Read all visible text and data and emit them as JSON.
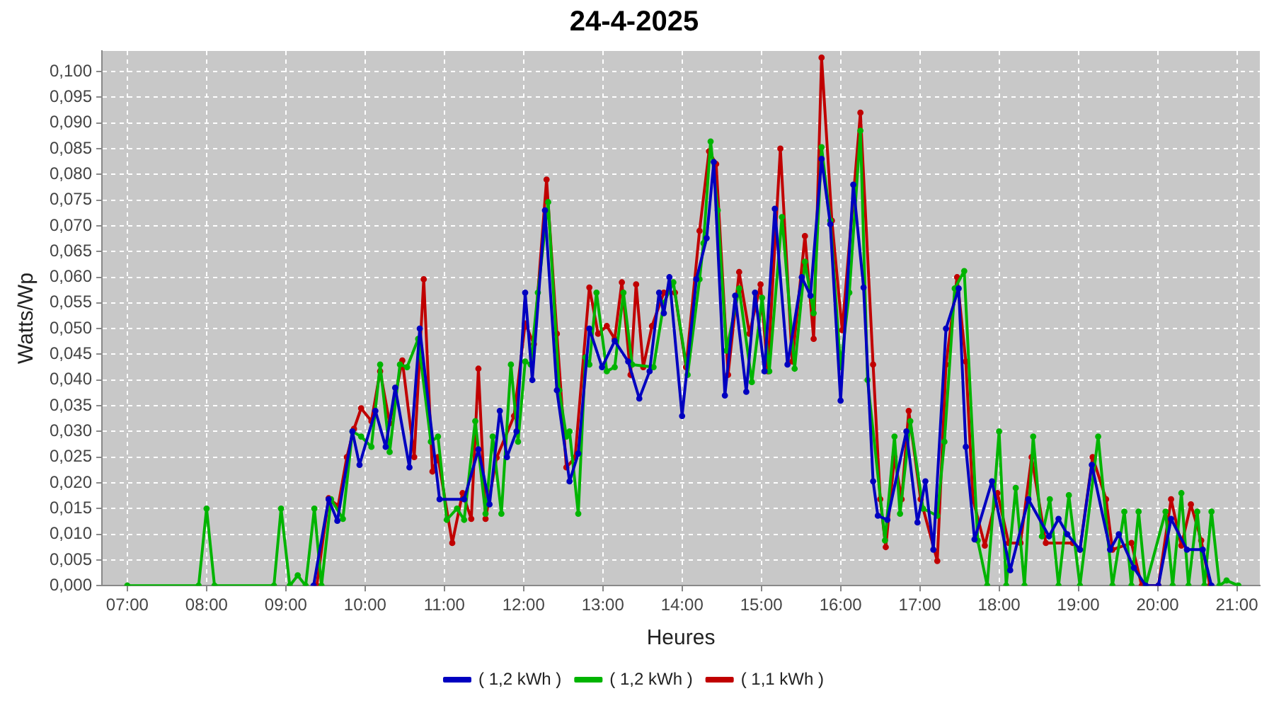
{
  "chart_data": {
    "type": "line",
    "title": "24-4-2025",
    "xlabel": "Heures",
    "ylabel": "Watts/Wp",
    "xlim": [
      6.68,
      21.29
    ],
    "xticks": [
      {
        "value": 7,
        "label": "07:00"
      },
      {
        "value": 8,
        "label": "08:00"
      },
      {
        "value": 9,
        "label": "09:00"
      },
      {
        "value": 10,
        "label": "10:00"
      },
      {
        "value": 11,
        "label": "11:00"
      },
      {
        "value": 12,
        "label": "12:00"
      },
      {
        "value": 13,
        "label": "13:00"
      },
      {
        "value": 14,
        "label": "14:00"
      },
      {
        "value": 15,
        "label": "15:00"
      },
      {
        "value": 16,
        "label": "16:00"
      },
      {
        "value": 17,
        "label": "17:00"
      },
      {
        "value": 18,
        "label": "18:00"
      },
      {
        "value": 19,
        "label": "19:00"
      },
      {
        "value": 20,
        "label": "20:00"
      },
      {
        "value": 21,
        "label": "21:00"
      }
    ],
    "ylim": [
      0,
      0.104
    ],
    "yticks": [
      {
        "value": 0,
        "label": "0,000"
      },
      {
        "value": 0.005,
        "label": "0,005"
      },
      {
        "value": 0.01,
        "label": "0,010"
      },
      {
        "value": 0.015,
        "label": "0,015"
      },
      {
        "value": 0.02,
        "label": "0,020"
      },
      {
        "value": 0.025,
        "label": "0,025"
      },
      {
        "value": 0.03,
        "label": "0,030"
      },
      {
        "value": 0.035,
        "label": "0,035"
      },
      {
        "value": 0.04,
        "label": "0,040"
      },
      {
        "value": 0.045,
        "label": "0,045"
      },
      {
        "value": 0.05,
        "label": "0,050"
      },
      {
        "value": 0.055,
        "label": "0,055"
      },
      {
        "value": 0.06,
        "label": "0,060"
      },
      {
        "value": 0.065,
        "label": "0,065"
      },
      {
        "value": 0.07,
        "label": "0,070"
      },
      {
        "value": 0.075,
        "label": "0,075"
      },
      {
        "value": 0.08,
        "label": "0,080"
      },
      {
        "value": 0.085,
        "label": "0,085"
      },
      {
        "value": 0.09,
        "label": "0,090"
      },
      {
        "value": 0.095,
        "label": "0,095"
      },
      {
        "value": 0.1,
        "label": "0,100"
      }
    ],
    "grid": true,
    "legend": "bottom",
    "marker": "circle",
    "line_style": "solid",
    "series": [
      {
        "name": "( 1,2 kWh )",
        "color": "#0000c0",
        "x": [
          9.35,
          9.54,
          9.65,
          9.84,
          9.93,
          10.13,
          10.26,
          10.38,
          10.56,
          10.69,
          10.94,
          11.25,
          11.43,
          11.57,
          11.7,
          11.79,
          11.91,
          12.02,
          12.11,
          12.27,
          12.42,
          12.58,
          12.69,
          12.83,
          12.99,
          13.15,
          13.32,
          13.46,
          13.59,
          13.71,
          13.77,
          13.84,
          14.0,
          14.18,
          14.31,
          14.4,
          14.54,
          14.67,
          14.81,
          14.92,
          15.04,
          15.17,
          15.33,
          15.51,
          15.62,
          15.76,
          15.87,
          16.0,
          16.16,
          16.29,
          16.41,
          16.47,
          16.59,
          16.83,
          16.97,
          17.07,
          17.17,
          17.33,
          17.49,
          17.58,
          17.69,
          17.91,
          18.14,
          18.37,
          18.63,
          18.75,
          18.86,
          19.02,
          19.17,
          19.4,
          19.51,
          19.7,
          19.85,
          20.01,
          20.17,
          20.37,
          20.57,
          20.68
        ],
        "values": [
          0,
          0.0168,
          0.0126,
          0.03,
          0.0235,
          0.034,
          0.027,
          0.0385,
          0.023,
          0.05,
          0.0168,
          0.0168,
          0.0265,
          0.0158,
          0.034,
          0.025,
          0.03,
          0.057,
          0.04,
          0.073,
          0.038,
          0.0203,
          0.0257,
          0.05,
          0.0425,
          0.0476,
          0.0436,
          0.0364,
          0.0417,
          0.057,
          0.053,
          0.06,
          0.033,
          0.0596,
          0.0676,
          0.0824,
          0.037,
          0.0564,
          0.0377,
          0.057,
          0.0417,
          0.0733,
          0.043,
          0.06,
          0.0564,
          0.083,
          0.0703,
          0.036,
          0.078,
          0.058,
          0.0203,
          0.0136,
          0.0128,
          0.03,
          0.0123,
          0.0203,
          0.007,
          0.05,
          0.0578,
          0.027,
          0.009,
          0.0203,
          0.003,
          0.0168,
          0.0096,
          0.013,
          0.01,
          0.007,
          0.0235,
          0.007,
          0.01,
          0.0035,
          0,
          0,
          0.013,
          0.007,
          0.007,
          0
        ]
      },
      {
        "name": "( 1,2 kWh )",
        "color": "#00b400",
        "x": [
          7.0,
          7.9,
          8.0,
          8.1,
          8.85,
          8.94,
          9.05,
          9.15,
          9.25,
          9.36,
          9.45,
          9.57,
          9.72,
          9.84,
          9.95,
          10.08,
          10.19,
          10.31,
          10.44,
          10.53,
          10.67,
          10.83,
          10.92,
          11.03,
          11.16,
          11.25,
          11.39,
          11.52,
          11.61,
          11.72,
          11.84,
          11.93,
          12.02,
          12.09,
          12.18,
          12.31,
          12.45,
          12.54,
          12.58,
          12.69,
          12.78,
          12.83,
          12.92,
          13.05,
          13.15,
          13.26,
          13.37,
          13.64,
          13.77,
          13.89,
          14.07,
          14.22,
          14.27,
          14.36,
          14.45,
          14.56,
          14.72,
          14.88,
          15.01,
          15.1,
          15.26,
          15.42,
          15.55,
          15.66,
          15.76,
          15.87,
          16.0,
          16.11,
          16.25,
          16.34,
          16.56,
          16.68,
          16.75,
          16.88,
          17.04,
          17.22,
          17.31,
          17.44,
          17.56,
          17.73,
          17.85,
          18.0,
          18.09,
          18.21,
          18.32,
          18.43,
          18.54,
          18.64,
          18.75,
          18.88,
          19.02,
          19.25,
          19.43,
          19.58,
          19.67,
          19.76,
          19.85,
          20.1,
          20.19,
          20.3,
          20.39,
          20.5,
          20.59,
          20.68,
          20.78,
          20.87,
          21.02
        ],
        "values": [
          0,
          0,
          0.015,
          0,
          0,
          0.015,
          0,
          0.002,
          0,
          0.015,
          0,
          0.0168,
          0.013,
          0.03,
          0.029,
          0.027,
          0.043,
          0.026,
          0.043,
          0.0425,
          0.048,
          0.028,
          0.029,
          0.0128,
          0.015,
          0.0128,
          0.032,
          0.014,
          0.029,
          0.014,
          0.043,
          0.028,
          0.0436,
          0.043,
          0.057,
          0.0746,
          0.038,
          0.029,
          0.03,
          0.014,
          0.0444,
          0.043,
          0.057,
          0.0417,
          0.0425,
          0.057,
          0.043,
          0.0425,
          0.055,
          0.059,
          0.041,
          0.0596,
          0.0666,
          0.0864,
          0.073,
          0.0457,
          0.0578,
          0.0396,
          0.056,
          0.0417,
          0.0717,
          0.0422,
          0.063,
          0.053,
          0.0853,
          0.071,
          0.0425,
          0.057,
          0.0885,
          0.04,
          0.0088,
          0.029,
          0.014,
          0.032,
          0.015,
          0.0136,
          0.028,
          0.0578,
          0.0612,
          0.0088,
          0,
          0.03,
          0,
          0.019,
          0,
          0.029,
          0.0096,
          0.0168,
          0,
          0.0176,
          0,
          0.029,
          0,
          0.0144,
          0,
          0.0144,
          0,
          0.0144,
          0,
          0.018,
          0,
          0.0144,
          0,
          0.0144,
          0,
          0.001,
          0
        ]
      },
      {
        "name": "( 1,1 kWh )",
        "color": "#c00000",
        "x": [
          9.39,
          9.54,
          9.66,
          9.77,
          9.86,
          9.95,
          10.08,
          10.19,
          10.31,
          10.47,
          10.62,
          10.74,
          10.85,
          10.92,
          11.1,
          11.23,
          11.34,
          11.43,
          11.52,
          11.66,
          11.88,
          12.02,
          12.13,
          12.29,
          12.42,
          12.54,
          12.65,
          12.83,
          12.94,
          13.05,
          13.15,
          13.24,
          13.35,
          13.42,
          13.51,
          13.62,
          13.77,
          13.91,
          14.05,
          14.22,
          14.34,
          14.43,
          14.58,
          14.72,
          14.85,
          14.99,
          15.08,
          15.24,
          15.39,
          15.55,
          15.66,
          15.76,
          15.89,
          16.02,
          16.25,
          16.41,
          16.5,
          16.57,
          16.68,
          16.77,
          16.86,
          17.01,
          17.22,
          17.33,
          17.47,
          17.58,
          17.67,
          17.82,
          17.98,
          18.12,
          18.27,
          18.41,
          18.59,
          18.93,
          19.02,
          19.18,
          19.35,
          19.43,
          19.67,
          19.8,
          20.01,
          20.17,
          20.3,
          20.42,
          20.55,
          20.66
        ],
        "values": [
          0,
          0.017,
          0.0155,
          0.025,
          0.0305,
          0.0345,
          0.032,
          0.0417,
          0.0316,
          0.0438,
          0.025,
          0.0596,
          0.0222,
          0.025,
          0.0083,
          0.018,
          0.013,
          0.0422,
          0.013,
          0.0249,
          0.033,
          0.051,
          0.047,
          0.079,
          0.049,
          0.023,
          0.0249,
          0.058,
          0.049,
          0.0505,
          0.048,
          0.059,
          0.041,
          0.0586,
          0.0425,
          0.0505,
          0.057,
          0.057,
          0.0425,
          0.069,
          0.0845,
          0.082,
          0.041,
          0.061,
          0.049,
          0.0586,
          0.0417,
          0.085,
          0.0436,
          0.068,
          0.048,
          0.1027,
          0.071,
          0.0497,
          0.092,
          0.043,
          0.0168,
          0.0075,
          0.025,
          0.0168,
          0.034,
          0.0168,
          0.0048,
          0.043,
          0.06,
          0.0436,
          0.0168,
          0.0078,
          0.018,
          0.0083,
          0.0083,
          0.025,
          0.0083,
          0.0083,
          0.007,
          0.025,
          0.0168,
          0.007,
          0.0083,
          0,
          0,
          0.0168,
          0.0078,
          0.0158,
          0.0088,
          0
        ]
      }
    ]
  }
}
